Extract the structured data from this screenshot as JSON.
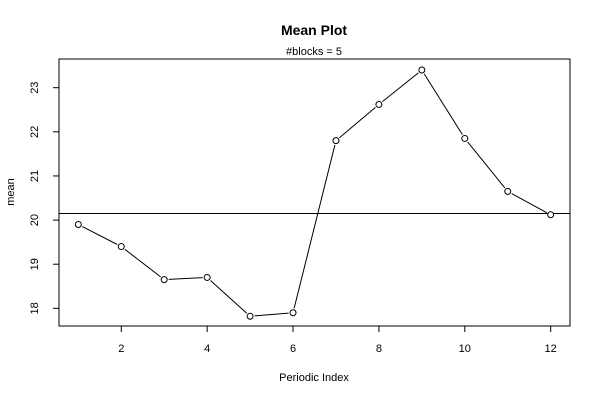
{
  "chart_data": {
    "type": "line",
    "title": "Mean Plot",
    "subtitle": "#blocks =  5",
    "xlabel": "Periodic Index",
    "ylabel": "mean",
    "x": [
      1,
      2,
      3,
      4,
      5,
      6,
      7,
      8,
      9,
      10,
      11,
      12
    ],
    "values": [
      19.9,
      19.4,
      18.65,
      18.7,
      17.82,
      17.9,
      21.8,
      22.62,
      23.4,
      21.85,
      20.65,
      20.12
    ],
    "reference_line": 20.15,
    "xlim": [
      0.55,
      12.45
    ],
    "ylim": [
      17.6,
      23.65
    ],
    "xticks": [
      2,
      4,
      6,
      8,
      10,
      12
    ],
    "yticks": [
      18,
      19,
      20,
      21,
      22,
      23
    ],
    "grid": false,
    "marker": "open-circle"
  }
}
